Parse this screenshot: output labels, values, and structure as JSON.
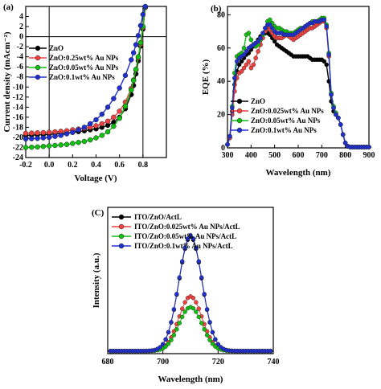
{
  "chart_data": [
    {
      "panel_label": "(a)",
      "type": "line",
      "xlabel": "Voltage (V)",
      "ylabel": "Current density (mAcm⁻²)",
      "xlim": [
        -0.2,
        1.0
      ],
      "ylim": [
        -24,
        6
      ],
      "xticks": [
        -0.2,
        0.0,
        0.2,
        0.4,
        0.6,
        0.8
      ],
      "yticks": [
        -24,
        -22,
        -20,
        -18,
        -16,
        -14,
        -12,
        -10,
        -8,
        -6,
        -4,
        -2,
        0,
        2,
        4
      ],
      "hline_at": 0,
      "vlines_at": [
        0,
        0.8
      ],
      "legend_position": "upper-left",
      "x": [
        -0.2,
        -0.15,
        -0.1,
        -0.05,
        0.0,
        0.05,
        0.1,
        0.15,
        0.2,
        0.25,
        0.3,
        0.35,
        0.4,
        0.45,
        0.5,
        0.55,
        0.6,
        0.65,
        0.7,
        0.72,
        0.74,
        0.76,
        0.78,
        0.8,
        0.82
      ],
      "series": [
        {
          "name": "ZnO",
          "color": "#000000",
          "values": [
            -19.6,
            -19.55,
            -19.5,
            -19.45,
            -19.4,
            -19.3,
            -19.2,
            -19.1,
            -19.0,
            -18.85,
            -18.7,
            -18.5,
            -18.3,
            -18.0,
            -17.6,
            -17.0,
            -16.0,
            -14.3,
            -11.5,
            -9.7,
            -7.4,
            -4.8,
            -1.9,
            1.5,
            5.8
          ]
        },
        {
          "name": "ZnO:0.25wt% Au NPs",
          "color": "#f04040",
          "values": [
            -19.2,
            -19.15,
            -19.1,
            -19.05,
            -19.0,
            -18.9,
            -18.8,
            -18.7,
            -18.5,
            -18.35,
            -18.2,
            -18.0,
            -17.7,
            -17.3,
            -16.8,
            -16.0,
            -14.8,
            -13.0,
            -10.3,
            -8.6,
            -6.6,
            -4.2,
            -1.5,
            1.8,
            5.8
          ]
        },
        {
          "name": "ZnO:0.05wt% Au NPs",
          "color": "#10c010",
          "values": [
            -22.0,
            -21.95,
            -21.9,
            -21.8,
            -21.7,
            -21.6,
            -21.5,
            -21.4,
            -21.2,
            -21.0,
            -20.8,
            -20.5,
            -20.1,
            -19.6,
            -18.9,
            -17.8,
            -16.2,
            -13.8,
            -10.6,
            -8.7,
            -6.5,
            -4.0,
            -1.2,
            2.0,
            5.9
          ]
        },
        {
          "name": "ZnO:0.1wt% Au NPs",
          "color": "#2030d0",
          "values": [
            -20.3,
            -20.25,
            -20.2,
            -20.1,
            -20.0,
            -19.8,
            -19.6,
            -19.3,
            -19.0,
            -18.5,
            -18.0,
            -17.3,
            -16.5,
            -15.4,
            -14.0,
            -12.3,
            -10.2,
            -7.7,
            -4.6,
            -3.2,
            -1.6,
            0.2,
            2.2,
            4.4,
            6.0
          ]
        }
      ]
    },
    {
      "panel_label": "(b)",
      "type": "line",
      "xlabel": "Wavelength (nm)",
      "ylabel": "EQE (%)",
      "xlim": [
        300,
        900
      ],
      "ylim": [
        0,
        85
      ],
      "xticks": [
        300,
        400,
        500,
        600,
        700,
        800,
        900
      ],
      "yticks": [
        0,
        20,
        40,
        60,
        80
      ],
      "legend_position": "lower-left",
      "x": [
        300,
        310,
        320,
        330,
        340,
        350,
        360,
        370,
        380,
        390,
        400,
        410,
        420,
        430,
        440,
        450,
        460,
        470,
        480,
        490,
        500,
        510,
        520,
        530,
        540,
        550,
        560,
        570,
        580,
        590,
        600,
        610,
        620,
        630,
        640,
        650,
        660,
        670,
        680,
        690,
        700,
        710,
        720,
        730,
        740,
        750,
        760,
        770,
        780,
        790,
        800,
        810,
        820,
        830,
        840,
        850,
        860,
        870,
        880,
        890,
        900
      ],
      "series": [
        {
          "name": "ZnO",
          "color": "#000000",
          "values": [
            2,
            6,
            22,
            38,
            46,
            50,
            52,
            54,
            56,
            57,
            59,
            61,
            63,
            65,
            67,
            68,
            69,
            69,
            68,
            66,
            64,
            62,
            61,
            60,
            59,
            58,
            57,
            56,
            55,
            55,
            55,
            55,
            55,
            55,
            55,
            54,
            53,
            53,
            53,
            53,
            53,
            52,
            50,
            40,
            28,
            22,
            20,
            18,
            14,
            8,
            3,
            1,
            0.5,
            0.5,
            0.5,
            0.5,
            0.5,
            0.5,
            0.5,
            0.5,
            0.5
          ]
        },
        {
          "name": "ZnO:0.025wt% Au NPs",
          "color": "#f04040",
          "values": [
            2,
            6,
            20,
            34,
            42,
            45,
            46,
            48,
            50,
            52,
            48,
            50,
            54,
            58,
            62,
            66,
            70,
            72,
            71,
            69,
            67,
            66,
            66,
            66,
            67,
            68,
            67,
            66,
            65,
            66,
            67,
            68,
            69,
            70,
            71,
            72,
            72,
            73,
            74,
            75,
            76,
            76,
            72,
            55,
            32,
            24,
            20,
            18,
            14,
            8,
            3,
            1,
            0.5,
            0.5,
            0.5,
            0.5,
            0.5,
            0.5,
            0.5,
            0.5,
            0.5
          ]
        },
        {
          "name": "ZnO:0.05wt% Au NPs",
          "color": "#10c010",
          "values": [
            2,
            7,
            25,
            45,
            55,
            56,
            57,
            60,
            68,
            69,
            65,
            62,
            61,
            62,
            65,
            68,
            72,
            76,
            77,
            75,
            73,
            72,
            72,
            71,
            70,
            70,
            69,
            69,
            69,
            70,
            71,
            72,
            72,
            73,
            74,
            75,
            76,
            76,
            76,
            77,
            78,
            78,
            74,
            57,
            33,
            25,
            21,
            18,
            14,
            8,
            3,
            1,
            0.5,
            0.5,
            0.5,
            0.5,
            0.5,
            0.5,
            0.5,
            0.5,
            0.5
          ]
        },
        {
          "name": "ZnO:0.1wt% Au NPs",
          "color": "#2030d0",
          "values": [
            2,
            7,
            24,
            42,
            52,
            54,
            55,
            56,
            58,
            60,
            61,
            62,
            63,
            64,
            66,
            69,
            72,
            74,
            74,
            72,
            70,
            69,
            69,
            69,
            68,
            68,
            68,
            68,
            68,
            69,
            70,
            71,
            72,
            73,
            74,
            75,
            75,
            76,
            76,
            76,
            77,
            77,
            73,
            56,
            32,
            24,
            20,
            18,
            14,
            8,
            3,
            1,
            0.5,
            0.5,
            0.5,
            0.5,
            0.5,
            0.5,
            0.5,
            0.5,
            0.5
          ]
        }
      ]
    },
    {
      "panel_label": "(C)",
      "type": "line",
      "xlabel": "Wavelength (nm)",
      "ylabel": "Intensity (a.u.)",
      "xlim": [
        680,
        740
      ],
      "ylim": [
        0,
        1.1
      ],
      "xticks": [
        680,
        700,
        720,
        740
      ],
      "yticks": [],
      "legend_position": "top-left",
      "peak_center": 710,
      "peak_width": 4.2,
      "series": [
        {
          "name": "ITO/ZnO/ActL",
          "color": "#000000",
          "peak": 0.86
        },
        {
          "name": "ITO/ZnO:0.025wt% Au NPs/ActL",
          "color": "#f04040",
          "peak": 0.41
        },
        {
          "name": "ITO/ZnO:0.05wt% Au NPs/ActL",
          "color": "#10c010",
          "peak": 0.33
        },
        {
          "name": "ITO/ZnO:0.1wt% Au NPs/ActL",
          "color": "#2030d0",
          "peak": 0.87
        }
      ]
    }
  ]
}
